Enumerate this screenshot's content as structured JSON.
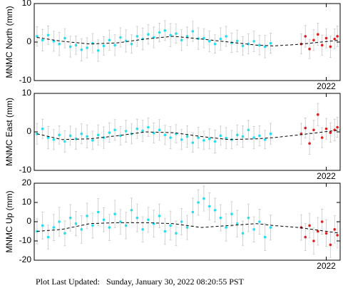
{
  "chart_data": [
    {
      "type": "scatter",
      "ylabel": "MNMC North (mm)",
      "xlim": [
        2019.9,
        2022.1
      ],
      "ylim": [
        -10,
        10
      ],
      "yticks": [
        -10,
        0,
        10
      ],
      "xticks": [
        2022
      ],
      "series": [
        {
          "color": "#22e0f0",
          "x": [
            2019.92,
            2019.96,
            2020.0,
            2020.04,
            2020.08,
            2020.12,
            2020.16,
            2020.2,
            2020.24,
            2020.28,
            2020.32,
            2020.36,
            2020.4,
            2020.44,
            2020.48,
            2020.52,
            2020.56,
            2020.6,
            2020.64,
            2020.68,
            2020.72,
            2020.76,
            2020.8,
            2020.84,
            2020.88,
            2020.92,
            2020.96,
            2021.0,
            2021.04,
            2021.08,
            2021.12,
            2021.16,
            2021.2,
            2021.24,
            2021.28,
            2021.32,
            2021.36,
            2021.4,
            2021.44,
            2021.48,
            2021.52,
            2021.56,
            2021.6
          ],
          "values": [
            1.5,
            0.5,
            1.8,
            0.2,
            -0.5,
            1.0,
            -1.2,
            -0.8,
            -2.0,
            -1.5,
            -0.3,
            -2.2,
            -1.0,
            0.5,
            -0.8,
            1.2,
            0.3,
            -0.5,
            1.5,
            0.8,
            2.0,
            1.2,
            2.5,
            3.0,
            1.8,
            2.2,
            0.5,
            1.5,
            2.8,
            0.9,
            1.0,
            0.2,
            -0.5,
            0.8,
            1.5,
            -0.2,
            0.3,
            -1.0,
            -0.5,
            0.2,
            -0.8,
            -1.2,
            -0.3
          ],
          "errors": [
            2.5,
            2.8,
            2.4,
            2.6,
            3.0,
            2.5,
            2.7,
            2.4,
            2.9,
            2.6,
            2.5,
            2.8,
            2.4,
            2.6,
            2.7,
            2.5,
            2.9,
            2.4,
            2.6,
            2.8,
            2.5,
            2.7,
            2.4,
            2.6,
            3.0,
            2.5,
            2.7,
            2.4,
            2.6,
            2.8,
            2.5,
            2.7,
            2.4,
            2.9,
            2.6,
            2.5,
            2.8,
            2.4,
            2.6,
            2.7,
            2.5,
            2.9,
            2.6
          ]
        },
        {
          "color": "#e02020",
          "x": [
            2021.82,
            2021.85,
            2021.88,
            2021.91,
            2021.94,
            2021.97,
            2022.0,
            2022.03,
            2022.06,
            2022.08
          ],
          "values": [
            -0.5,
            1.5,
            -1.8,
            0.5,
            2.0,
            -0.8,
            1.0,
            -1.2,
            0.8,
            1.5
          ],
          "errors": [
            2.6,
            2.8,
            2.5,
            2.7,
            2.9,
            2.6,
            2.5,
            2.8,
            2.6,
            2.7
          ]
        },
        {
          "color": "#000000",
          "style": "dashed",
          "x": [
            2019.92,
            2020.1,
            2020.3,
            2020.5,
            2020.7,
            2020.9,
            2021.1,
            2021.3,
            2021.5,
            2021.62,
            2021.8,
            2022.1
          ],
          "values": [
            1.2,
            0.2,
            -0.5,
            -0.2,
            0.8,
            1.5,
            0.8,
            0,
            -0.8,
            -1.0,
            -0.6,
            0.5
          ]
        }
      ]
    },
    {
      "type": "scatter",
      "ylabel": "MNMC East (mm)",
      "xlim": [
        2019.9,
        2022.1
      ],
      "ylim": [
        -10,
        10
      ],
      "yticks": [
        -10,
        0,
        10
      ],
      "xticks": [
        2022
      ],
      "series": [
        {
          "color": "#22e0f0",
          "x": [
            2019.92,
            2019.96,
            2020.0,
            2020.04,
            2020.08,
            2020.12,
            2020.16,
            2020.2,
            2020.24,
            2020.28,
            2020.32,
            2020.36,
            2020.4,
            2020.44,
            2020.48,
            2020.52,
            2020.56,
            2020.6,
            2020.64,
            2020.68,
            2020.72,
            2020.76,
            2020.8,
            2020.84,
            2020.88,
            2020.92,
            2020.96,
            2021.0,
            2021.04,
            2021.08,
            2021.12,
            2021.16,
            2021.2,
            2021.24,
            2021.28,
            2021.32,
            2021.36,
            2021.4,
            2021.44,
            2021.48,
            2021.52,
            2021.56,
            2021.6
          ],
          "values": [
            -0.5,
            0.8,
            -1.5,
            -2.0,
            -0.8,
            -2.5,
            -1.0,
            -1.8,
            -0.5,
            -1.2,
            -2.2,
            -0.8,
            -1.5,
            -0.2,
            0.5,
            -1.0,
            0.2,
            -0.5,
            0.8,
            0.3,
            1.2,
            -0.3,
            0.5,
            -0.8,
            -1.5,
            -0.5,
            -2.0,
            -1.2,
            -2.8,
            -1.5,
            -2.2,
            -1.8,
            -2.5,
            -1.0,
            -1.6,
            -2.0,
            -0.8,
            -1.2,
            0.5,
            -1.5,
            -1.0,
            -2.0,
            -0.5
          ],
          "errors": [
            2.7,
            2.5,
            2.9,
            2.6,
            2.4,
            2.8,
            2.5,
            2.7,
            2.6,
            3.0,
            2.4,
            2.6,
            2.8,
            2.5,
            2.7,
            2.4,
            2.9,
            2.6,
            2.5,
            2.8,
            2.4,
            2.6,
            2.7,
            2.5,
            2.9,
            2.4,
            2.6,
            2.8,
            2.5,
            2.7,
            2.4,
            2.6,
            3.0,
            2.5,
            2.7,
            2.4,
            2.6,
            2.8,
            2.5,
            2.9,
            2.6,
            2.4,
            2.7
          ]
        },
        {
          "color": "#e02020",
          "x": [
            2021.82,
            2021.85,
            2021.88,
            2021.91,
            2021.94,
            2021.97,
            2022.0,
            2022.03,
            2022.06,
            2022.08
          ],
          "values": [
            -0.5,
            1.0,
            -3.0,
            0.5,
            4.5,
            -1.5,
            0.8,
            -0.2,
            0.5,
            1.2
          ],
          "errors": [
            2.7,
            2.6,
            2.8,
            2.5,
            2.9,
            2.6,
            2.7,
            2.5,
            2.8,
            2.6
          ]
        },
        {
          "color": "#000000",
          "style": "dashed",
          "x": [
            2019.92,
            2020.1,
            2020.3,
            2020.5,
            2020.7,
            2020.9,
            2021.1,
            2021.3,
            2021.5,
            2021.62,
            2021.8,
            2022.1
          ],
          "values": [
            -0.5,
            -2.0,
            -1.8,
            -1.0,
            0,
            -0.2,
            -1.2,
            -2.0,
            -1.8,
            -1.5,
            -0.8,
            0.5
          ]
        }
      ]
    },
    {
      "type": "scatter",
      "ylabel": "MNMC Up (mm)",
      "xlim": [
        2019.9,
        2022.1
      ],
      "ylim": [
        -20,
        20
      ],
      "yticks": [
        -20,
        -10,
        0,
        10,
        20
      ],
      "xticks": [
        2022
      ],
      "series": [
        {
          "color": "#22e0f0",
          "x": [
            2019.92,
            2019.96,
            2020.0,
            2020.04,
            2020.08,
            2020.12,
            2020.16,
            2020.2,
            2020.24,
            2020.28,
            2020.32,
            2020.36,
            2020.4,
            2020.44,
            2020.48,
            2020.52,
            2020.56,
            2020.6,
            2020.64,
            2020.68,
            2020.72,
            2020.76,
            2020.8,
            2020.84,
            2020.88,
            2020.92,
            2020.96,
            2021.0,
            2021.04,
            2021.08,
            2021.12,
            2021.16,
            2021.2,
            2021.24,
            2021.28,
            2021.32,
            2021.36,
            2021.4,
            2021.44,
            2021.48,
            2021.52,
            2021.56,
            2021.6
          ],
          "values": [
            -5,
            -2,
            -8,
            -3,
            0,
            -6,
            2,
            -1,
            -4,
            3,
            -2,
            5,
            1,
            -3,
            4,
            0,
            -2,
            6,
            2,
            -4,
            1,
            -1,
            3,
            -5,
            -2,
            -6,
            0,
            -3,
            5,
            10,
            12,
            8,
            6,
            2,
            -3,
            4,
            -1,
            -6,
            2,
            -4,
            0,
            -8,
            -3
          ],
          "errors": [
            6.5,
            7.0,
            6.2,
            6.8,
            7.5,
            6.4,
            6.9,
            6.3,
            7.2,
            6.6,
            6.5,
            7.0,
            6.2,
            6.8,
            7.1,
            6.4,
            6.9,
            6.3,
            7.2,
            6.6,
            6.5,
            7.0,
            6.2,
            6.8,
            7.5,
            6.4,
            6.9,
            6.3,
            7.2,
            6.6,
            6.5,
            7.0,
            6.2,
            6.8,
            7.1,
            6.4,
            6.9,
            6.3,
            7.2,
            6.6,
            6.5,
            7.0,
            6.4
          ]
        },
        {
          "color": "#e02020",
          "x": [
            2021.82,
            2021.85,
            2021.88,
            2021.91,
            2021.94,
            2021.97,
            2022.0,
            2022.03,
            2022.06,
            2022.08
          ],
          "values": [
            -3,
            -8,
            -2,
            -10,
            -5,
            0,
            -6,
            -12,
            -4,
            -7
          ],
          "errors": [
            6.6,
            7.0,
            6.4,
            6.8,
            7.2,
            6.5,
            6.9,
            6.6,
            7.1,
            6.7
          ]
        },
        {
          "color": "#000000",
          "style": "dashed",
          "x": [
            2019.92,
            2020.1,
            2020.3,
            2020.5,
            2020.7,
            2020.9,
            2021.1,
            2021.3,
            2021.5,
            2021.62,
            2021.8,
            2022.1
          ],
          "values": [
            -5,
            -4,
            -1,
            -0.5,
            -0.5,
            -1,
            -3,
            -2,
            -1,
            -2,
            -3,
            -6
          ]
        }
      ]
    }
  ],
  "footer": "Plot Last Updated:   Sunday, January 30, 2022 08:20:55 PST"
}
